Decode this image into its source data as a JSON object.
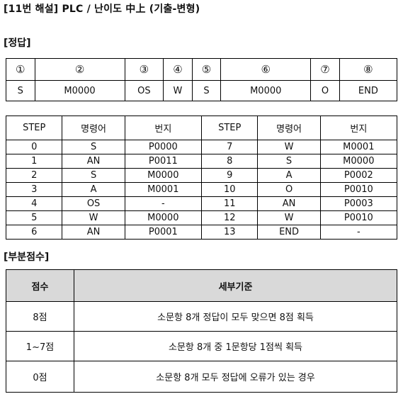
{
  "header": {
    "title": "[11번 해설] PLC / 난이도 中上 (기출-변형)"
  },
  "answer_section": {
    "label": "[정답]",
    "numbers": [
      "①",
      "②",
      "③",
      "④",
      "⑤",
      "⑥",
      "⑦",
      "⑧"
    ],
    "answers": [
      "S",
      "M0000",
      "OS",
      "W",
      "S",
      "M0000",
      "O",
      "END"
    ]
  },
  "step_table": {
    "headers": [
      "STEP",
      "명령어",
      "번지",
      "STEP",
      "명령어",
      "번지"
    ],
    "rows": [
      [
        "0",
        "S",
        "P0000",
        "7",
        "W",
        "M0001"
      ],
      [
        "1",
        "AN",
        "P0011",
        "8",
        "S",
        "M0000"
      ],
      [
        "2",
        "S",
        "M0000",
        "9",
        "A",
        "P0002"
      ],
      [
        "3",
        "A",
        "M0001",
        "10",
        "O",
        "P0010"
      ],
      [
        "4",
        "OS",
        "-",
        "11",
        "AN",
        "P0003"
      ],
      [
        "5",
        "W",
        "M0000",
        "12",
        "W",
        "P0010"
      ],
      [
        "6",
        "AN",
        "P0001",
        "13",
        "END",
        "-"
      ]
    ]
  },
  "scoring": {
    "label": "[부분점수]",
    "headers": [
      "점수",
      "세부기준"
    ],
    "rows": [
      [
        "8점",
        "소문항 8개 정답이 모두 맞으면 8점 획득"
      ],
      [
        "1~7점",
        "소문항 8개 중 1문항당 1점씩 획득"
      ],
      [
        "0점",
        "소문항 8개 모두 정답에 오류가 있는 경우"
      ]
    ]
  }
}
